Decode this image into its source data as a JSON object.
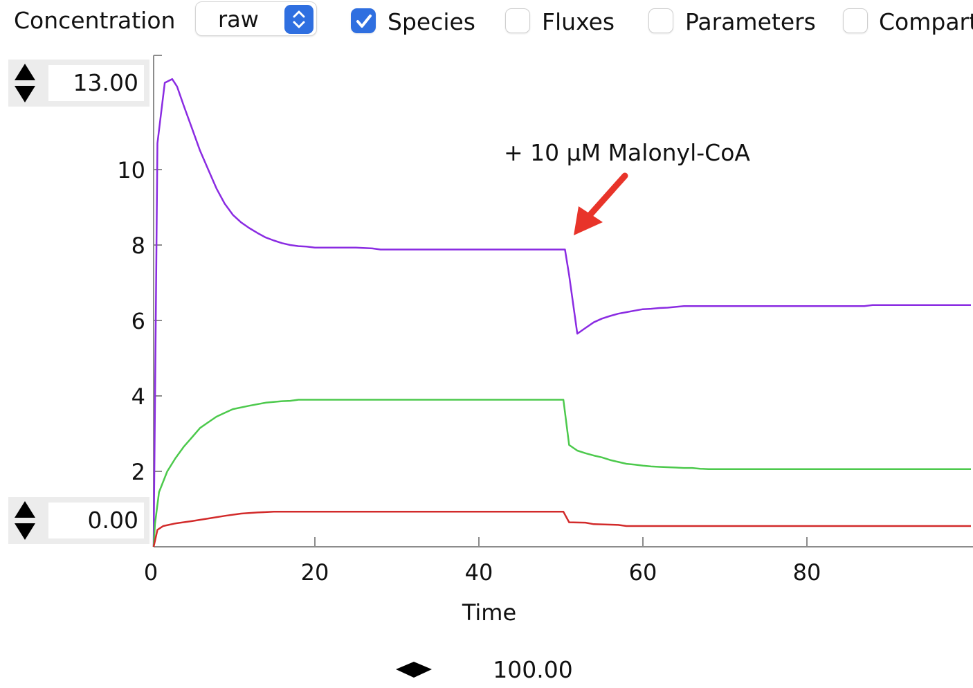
{
  "toolbar": {
    "label": "Concentration",
    "scale_select": {
      "value": "raw"
    },
    "checkboxes": [
      {
        "label": "Species",
        "checked": true
      },
      {
        "label": "Fluxes",
        "checked": false
      },
      {
        "label": "Parameters",
        "checked": false
      },
      {
        "label": "Compart",
        "checked": false
      }
    ]
  },
  "axis_controls": {
    "y_max": "13.00",
    "y_min": "0.00",
    "x_max": "100.00"
  },
  "colors": {
    "purple": "#8a2be2",
    "green": "#4cc94c",
    "red": "#d22a2a",
    "annotation_arrow": "#e8342a",
    "accent": "#2f6fe0"
  },
  "annotation": {
    "text": "+ 10 μM Malonyl-CoA"
  },
  "chart_data": {
    "type": "line",
    "xlabel": "Time",
    "ylabel": "",
    "xlim": [
      0,
      100
    ],
    "ylim": [
      0,
      13
    ],
    "x_ticks": [
      "0",
      "20",
      "40",
      "60",
      "80"
    ],
    "y_ticks": [
      "2",
      "4",
      "6",
      "8",
      "10"
    ],
    "series": [
      {
        "color": "#8a2be2",
        "x": [
          0,
          0.8,
          1.7,
          2.6,
          3.2,
          4,
          5,
          6,
          7,
          8,
          9,
          10,
          11,
          12,
          13,
          14,
          15,
          16,
          17,
          18,
          19,
          20,
          25,
          27,
          28,
          30,
          40,
          50,
          50.5,
          51,
          52,
          53,
          54,
          55,
          56,
          57,
          58,
          59,
          60,
          61,
          62,
          63,
          64,
          65,
          70,
          80,
          87,
          88,
          90,
          100
        ],
        "y": [
          0,
          10.7,
          12.3,
          12.4,
          12.2,
          11.7,
          11.1,
          10.5,
          10.0,
          9.5,
          9.1,
          8.8,
          8.6,
          8.45,
          8.32,
          8.2,
          8.12,
          8.05,
          8.0,
          7.97,
          7.96,
          7.93,
          7.93,
          7.91,
          7.88,
          7.88,
          7.88,
          7.88,
          7.88,
          7.2,
          5.65,
          5.8,
          5.95,
          6.05,
          6.12,
          6.18,
          6.22,
          6.26,
          6.3,
          6.31,
          6.33,
          6.34,
          6.36,
          6.38,
          6.38,
          6.38,
          6.38,
          6.41,
          6.41,
          6.41
        ]
      },
      {
        "color": "#4cc94c",
        "x": [
          0,
          0.5,
          1,
          2,
          3,
          4,
          5,
          6,
          7,
          8,
          9,
          10,
          12,
          14,
          16,
          17,
          18,
          20,
          30,
          40,
          50,
          50.3,
          51,
          52,
          53,
          54,
          55,
          56,
          57,
          58,
          59,
          60,
          61,
          62,
          63,
          64,
          65,
          66,
          67,
          68,
          70,
          80,
          100
        ],
        "y": [
          0,
          0.6,
          1.45,
          2.0,
          2.35,
          2.65,
          2.9,
          3.15,
          3.3,
          3.45,
          3.55,
          3.65,
          3.74,
          3.82,
          3.86,
          3.87,
          3.9,
          3.9,
          3.9,
          3.9,
          3.9,
          3.9,
          2.7,
          2.55,
          2.48,
          2.42,
          2.37,
          2.3,
          2.25,
          2.2,
          2.18,
          2.15,
          2.13,
          2.12,
          2.11,
          2.1,
          2.09,
          2.09,
          2.07,
          2.06,
          2.06,
          2.06,
          2.06
        ]
      },
      {
        "color": "#d22a2a",
        "x": [
          0,
          0.8,
          1.5,
          3,
          5,
          7,
          9,
          11,
          13,
          15,
          20,
          30,
          40,
          50,
          50.3,
          51,
          53,
          54,
          57,
          58,
          60,
          70,
          80,
          100
        ],
        "y": [
          0,
          0.45,
          0.55,
          0.62,
          0.68,
          0.75,
          0.82,
          0.88,
          0.91,
          0.93,
          0.93,
          0.93,
          0.93,
          0.93,
          0.93,
          0.65,
          0.64,
          0.6,
          0.58,
          0.55,
          0.55,
          0.55,
          0.55,
          0.55
        ]
      }
    ]
  }
}
